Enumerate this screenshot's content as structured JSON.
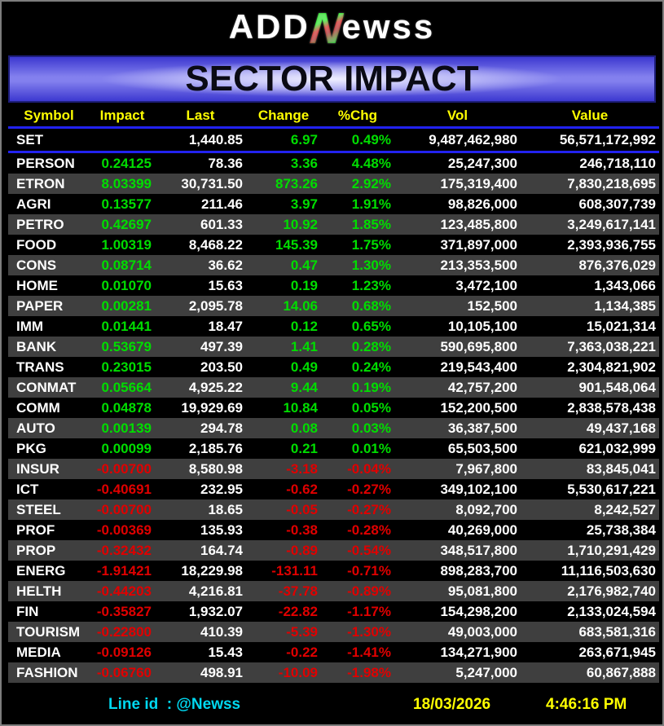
{
  "logo": {
    "prefix": "ADD",
    "n": "N",
    "suffix": "ewss"
  },
  "title": "SECTOR IMPACT",
  "chart_data": {
    "type": "table",
    "title": "SECTOR IMPACT",
    "columns": [
      "Symbol",
      "Impact",
      "Last",
      "Change",
      "%Chg",
      "Vol",
      "Value"
    ],
    "row_striping": true,
    "index_row": {
      "symbol": "SET",
      "impact": "",
      "last": "1,440.85",
      "change": "6.97",
      "pct_change": "0.49%",
      "volume": "9,487,462,980",
      "value": "56,571,172,992"
    },
    "rows": [
      {
        "symbol": "PERSON",
        "impact": "0.24125",
        "last": "78.36",
        "change": "3.36",
        "pct_change": "4.48%",
        "volume": "25,247,300",
        "value": "246,718,110"
      },
      {
        "symbol": "ETRON",
        "impact": "8.03399",
        "last": "30,731.50",
        "change": "873.26",
        "pct_change": "2.92%",
        "volume": "175,319,400",
        "value": "7,830,218,695"
      },
      {
        "symbol": "AGRI",
        "impact": "0.13577",
        "last": "211.46",
        "change": "3.97",
        "pct_change": "1.91%",
        "volume": "98,826,000",
        "value": "608,307,739"
      },
      {
        "symbol": "PETRO",
        "impact": "0.42697",
        "last": "601.33",
        "change": "10.92",
        "pct_change": "1.85%",
        "volume": "123,485,800",
        "value": "3,249,617,141"
      },
      {
        "symbol": "FOOD",
        "impact": "1.00319",
        "last": "8,468.22",
        "change": "145.39",
        "pct_change": "1.75%",
        "volume": "371,897,000",
        "value": "2,393,936,755"
      },
      {
        "symbol": "CONS",
        "impact": "0.08714",
        "last": "36.62",
        "change": "0.47",
        "pct_change": "1.30%",
        "volume": "213,353,500",
        "value": "876,376,029"
      },
      {
        "symbol": "HOME",
        "impact": "0.01070",
        "last": "15.63",
        "change": "0.19",
        "pct_change": "1.23%",
        "volume": "3,472,100",
        "value": "1,343,066"
      },
      {
        "symbol": "PAPER",
        "impact": "0.00281",
        "last": "2,095.78",
        "change": "14.06",
        "pct_change": "0.68%",
        "volume": "152,500",
        "value": "1,134,385"
      },
      {
        "symbol": "IMM",
        "impact": "0.01441",
        "last": "18.47",
        "change": "0.12",
        "pct_change": "0.65%",
        "volume": "10,105,100",
        "value": "15,021,314"
      },
      {
        "symbol": "BANK",
        "impact": "0.53679",
        "last": "497.39",
        "change": "1.41",
        "pct_change": "0.28%",
        "volume": "590,695,800",
        "value": "7,363,038,221"
      },
      {
        "symbol": "TRANS",
        "impact": "0.23015",
        "last": "203.50",
        "change": "0.49",
        "pct_change": "0.24%",
        "volume": "219,543,400",
        "value": "2,304,821,902"
      },
      {
        "symbol": "CONMAT",
        "impact": "0.05664",
        "last": "4,925.22",
        "change": "9.44",
        "pct_change": "0.19%",
        "volume": "42,757,200",
        "value": "901,548,064"
      },
      {
        "symbol": "COMM",
        "impact": "0.04878",
        "last": "19,929.69",
        "change": "10.84",
        "pct_change": "0.05%",
        "volume": "152,200,500",
        "value": "2,838,578,438"
      },
      {
        "symbol": "AUTO",
        "impact": "0.00139",
        "last": "294.78",
        "change": "0.08",
        "pct_change": "0.03%",
        "volume": "36,387,500",
        "value": "49,437,168"
      },
      {
        "symbol": "PKG",
        "impact": "0.00099",
        "last": "2,185.76",
        "change": "0.21",
        "pct_change": "0.01%",
        "volume": "65,503,500",
        "value": "621,032,999"
      },
      {
        "symbol": "INSUR",
        "impact": "-0.00700",
        "last": "8,580.98",
        "change": "-3.18",
        "pct_change": "-0.04%",
        "volume": "7,967,800",
        "value": "83,845,041"
      },
      {
        "symbol": "ICT",
        "impact": "-0.40691",
        "last": "232.95",
        "change": "-0.62",
        "pct_change": "-0.27%",
        "volume": "349,102,100",
        "value": "5,530,617,221"
      },
      {
        "symbol": "STEEL",
        "impact": "-0.00700",
        "last": "18.65",
        "change": "-0.05",
        "pct_change": "-0.27%",
        "volume": "8,092,700",
        "value": "8,242,527"
      },
      {
        "symbol": "PROF",
        "impact": "-0.00369",
        "last": "135.93",
        "change": "-0.38",
        "pct_change": "-0.28%",
        "volume": "40,269,000",
        "value": "25,738,384"
      },
      {
        "symbol": "PROP",
        "impact": "-0.32432",
        "last": "164.74",
        "change": "-0.89",
        "pct_change": "-0.54%",
        "volume": "348,517,800",
        "value": "1,710,291,429"
      },
      {
        "symbol": "ENERG",
        "impact": "-1.91421",
        "last": "18,229.98",
        "change": "-131.11",
        "pct_change": "-0.71%",
        "volume": "898,283,700",
        "value": "11,116,503,630"
      },
      {
        "symbol": "HELTH",
        "impact": "-0.44203",
        "last": "4,216.81",
        "change": "-37.78",
        "pct_change": "-0.89%",
        "volume": "95,081,800",
        "value": "2,176,982,740"
      },
      {
        "symbol": "FIN",
        "impact": "-0.35827",
        "last": "1,932.07",
        "change": "-22.82",
        "pct_change": "-1.17%",
        "volume": "154,298,200",
        "value": "2,133,024,594"
      },
      {
        "symbol": "TOURISM",
        "impact": "-0.22800",
        "last": "410.39",
        "change": "-5.39",
        "pct_change": "-1.30%",
        "volume": "49,003,000",
        "value": "683,581,316"
      },
      {
        "symbol": "MEDIA",
        "impact": "-0.09126",
        "last": "15.43",
        "change": "-0.22",
        "pct_change": "-1.41%",
        "volume": "134,271,900",
        "value": "263,671,945"
      },
      {
        "symbol": "FASHION",
        "impact": "-0.06760",
        "last": "498.91",
        "change": "-10.09",
        "pct_change": "-1.98%",
        "volume": "5,247,000",
        "value": "60,867,888"
      }
    ]
  },
  "footer": {
    "line_id": "Line id  : @Newss",
    "date": "18/03/2026",
    "time": "4:46:16 PM"
  },
  "colors": {
    "positive": "#00dd00",
    "negative": "#e00000",
    "header_text": "#ffff00",
    "accent_line": "#2222f0",
    "banner_blue": "#3c38d0",
    "alt_row": "#3f3f3f",
    "line_id_text": "#00d8f0",
    "footer_text": "#ffff00"
  }
}
